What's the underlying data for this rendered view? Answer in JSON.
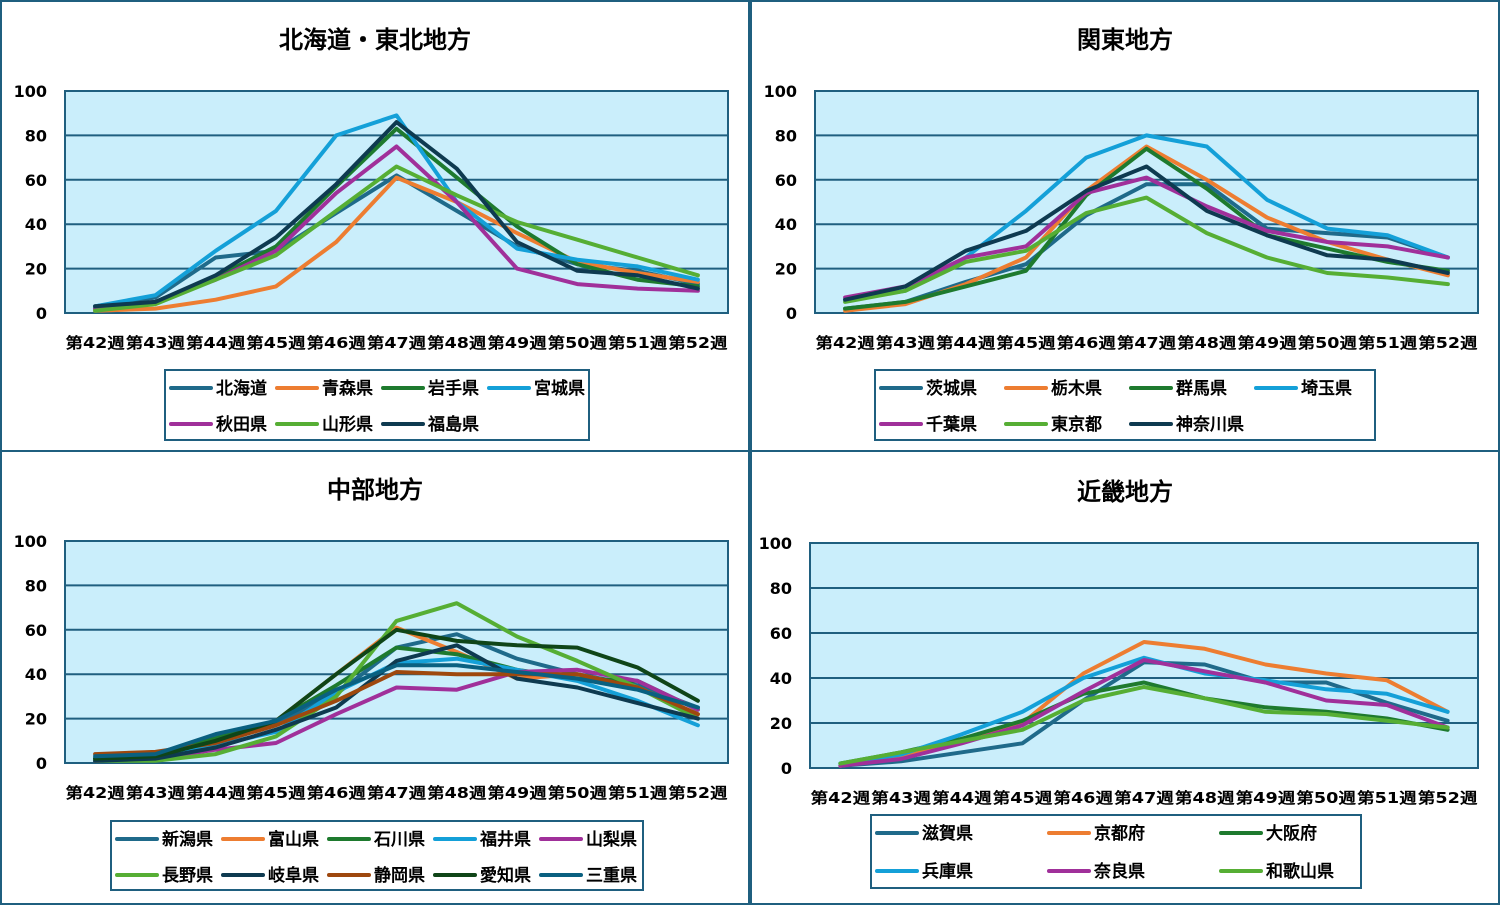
{
  "chart_data": [
    {
      "type": "line",
      "title": "北海道・東北地方",
      "categories": [
        "第42週",
        "第43週",
        "第44週",
        "第45週",
        "第46週",
        "第47週",
        "第48週",
        "第49週",
        "第50週",
        "第51週",
        "第52週"
      ],
      "ylim": [
        0,
        100
      ],
      "yticks": [
        0,
        20,
        40,
        60,
        80,
        100
      ],
      "grid": true,
      "legend": "bottom",
      "series": [
        {
          "name": "北海道",
          "color": "#1F6A8A",
          "values": [
            3,
            7,
            25,
            28,
            45,
            62,
            46,
            30,
            22,
            19,
            13
          ]
        },
        {
          "name": "青森県",
          "color": "#ED7D31",
          "values": [
            1,
            2,
            6,
            12,
            32,
            61,
            50,
            36,
            23,
            18,
            14
          ]
        },
        {
          "name": "岩手県",
          "color": "#1E7A2E",
          "values": [
            2,
            5,
            16,
            30,
            57,
            83,
            61,
            39,
            22,
            15,
            12
          ]
        },
        {
          "name": "宮城県",
          "color": "#14A0D8",
          "values": [
            3,
            8,
            28,
            46,
            80,
            89,
            50,
            29,
            24,
            21,
            15
          ]
        },
        {
          "name": "秋田県",
          "color": "#A0309A",
          "values": [
            2,
            5,
            15,
            28,
            54,
            75,
            50,
            20,
            13,
            11,
            10
          ]
        },
        {
          "name": "山形県",
          "color": "#56AE34",
          "values": [
            1,
            4,
            15,
            26,
            46,
            66,
            53,
            41,
            33,
            25,
            17
          ]
        },
        {
          "name": "福島県",
          "color": "#0E3A50",
          "values": [
            3,
            5,
            17,
            34,
            58,
            86,
            65,
            32,
            19,
            17,
            11
          ]
        }
      ]
    },
    {
      "type": "line",
      "title": "関東地方",
      "categories": [
        "第42週",
        "第43週",
        "第44週",
        "第45週",
        "第46週",
        "第47週",
        "第48週",
        "第49週",
        "第50週",
        "第51週",
        "第52週"
      ],
      "ylim": [
        0,
        100
      ],
      "yticks": [
        0,
        20,
        40,
        60,
        80,
        100
      ],
      "grid": true,
      "legend": "bottom",
      "series": [
        {
          "name": "茨城県",
          "color": "#1F6A8A",
          "values": [
            2,
            5,
            14,
            22,
            44,
            58,
            58,
            38,
            36,
            34,
            25
          ]
        },
        {
          "name": "栃木県",
          "color": "#ED7D31",
          "values": [
            1,
            4,
            13,
            25,
            55,
            75,
            60,
            43,
            32,
            24,
            17
          ]
        },
        {
          "name": "群馬県",
          "color": "#1E7A2E",
          "values": [
            2,
            5,
            12,
            19,
            53,
            74,
            56,
            35,
            29,
            23,
            19
          ]
        },
        {
          "name": "埼玉県",
          "color": "#14A0D8",
          "values": [
            6,
            10,
            25,
            46,
            70,
            80,
            75,
            51,
            38,
            35,
            25
          ]
        },
        {
          "name": "千葉県",
          "color": "#A0309A",
          "values": [
            7,
            12,
            25,
            30,
            54,
            61,
            48,
            37,
            32,
            30,
            25
          ]
        },
        {
          "name": "東京都",
          "color": "#56AE34",
          "values": [
            5,
            10,
            23,
            28,
            45,
            52,
            36,
            25,
            18,
            16,
            13
          ]
        },
        {
          "name": "神奈川県",
          "color": "#0E3A50",
          "values": [
            6,
            12,
            28,
            37,
            55,
            66,
            46,
            35,
            26,
            24,
            18
          ]
        }
      ]
    },
    {
      "type": "line",
      "title": "中部地方",
      "categories": [
        "第42週",
        "第43週",
        "第44週",
        "第45週",
        "第46週",
        "第47週",
        "第48週",
        "第49週",
        "第50週",
        "第51週",
        "第52週"
      ],
      "ylim": [
        0,
        100
      ],
      "yticks": [
        0,
        20,
        40,
        60,
        80,
        100
      ],
      "grid": true,
      "legend": "bottom",
      "series": [
        {
          "name": "新潟県",
          "color": "#1F6A8A",
          "values": [
            2,
            3,
            12,
            18,
            31,
            52,
            58,
            47,
            40,
            35,
            25
          ]
        },
        {
          "name": "富山県",
          "color": "#ED7D31",
          "values": [
            1,
            2,
            9,
            19,
            40,
            61,
            50,
            38,
            40,
            34,
            22
          ]
        },
        {
          "name": "石川県",
          "color": "#1E7A2E",
          "values": [
            2,
            4,
            11,
            19,
            35,
            52,
            49,
            42,
            38,
            37,
            24
          ]
        },
        {
          "name": "福井県",
          "color": "#14A0D8",
          "values": [
            1,
            3,
            8,
            14,
            32,
            45,
            47,
            42,
            37,
            28,
            17
          ]
        },
        {
          "name": "山梨県",
          "color": "#A0309A",
          "values": [
            1,
            2,
            6,
            9,
            22,
            34,
            33,
            41,
            42,
            37,
            24
          ]
        },
        {
          "name": "長野県",
          "color": "#56AE34",
          "values": [
            1,
            1,
            4,
            12,
            30,
            64,
            72,
            57,
            46,
            34,
            20
          ]
        },
        {
          "name": "岐阜県",
          "color": "#0E3A50",
          "values": [
            1,
            2,
            7,
            15,
            25,
            46,
            53,
            38,
            34,
            27,
            20
          ]
        },
        {
          "name": "静岡県",
          "color": "#9E480E",
          "values": [
            4,
            5,
            9,
            17,
            28,
            41,
            40,
            40,
            40,
            34,
            22
          ]
        },
        {
          "name": "愛知県",
          "color": "#0F4518",
          "values": [
            2,
            3,
            10,
            19,
            40,
            60,
            55,
            53,
            52,
            43,
            28
          ]
        },
        {
          "name": "三重県",
          "color": "#0A6080",
          "values": [
            3,
            4,
            13,
            19,
            33,
            44,
            44,
            41,
            38,
            33,
            25
          ]
        }
      ]
    },
    {
      "type": "line",
      "title": "近畿地方",
      "categories": [
        "第42週",
        "第43週",
        "第44週",
        "第45週",
        "第46週",
        "第47週",
        "第48週",
        "第49週",
        "第50週",
        "第51週",
        "第52週"
      ],
      "ylim": [
        0,
        100
      ],
      "yticks": [
        0,
        20,
        40,
        60,
        80,
        100
      ],
      "grid": true,
      "legend": "bottom",
      "series": [
        {
          "name": "滋賀県",
          "color": "#1F6A8A",
          "values": [
            1,
            3,
            7,
            11,
            30,
            47,
            46,
            38,
            38,
            29,
            21
          ]
        },
        {
          "name": "京都府",
          "color": "#ED7D31",
          "values": [
            1,
            5,
            12,
            20,
            42,
            56,
            53,
            46,
            42,
            39,
            25
          ]
        },
        {
          "name": "大阪府",
          "color": "#1E7A2E",
          "values": [
            2,
            7,
            13,
            21,
            33,
            38,
            31,
            27,
            25,
            22,
            17
          ]
        },
        {
          "name": "兵庫県",
          "color": "#14A0D8",
          "values": [
            2,
            6,
            15,
            25,
            40,
            49,
            42,
            39,
            35,
            33,
            25
          ]
        },
        {
          "name": "奈良県",
          "color": "#A0309A",
          "values": [
            1,
            4,
            11,
            19,
            34,
            48,
            43,
            38,
            30,
            28,
            18
          ]
        },
        {
          "name": "和歌山県",
          "color": "#56AE34",
          "values": [
            2,
            7,
            12,
            17,
            30,
            36,
            31,
            25,
            24,
            21,
            18
          ]
        }
      ]
    }
  ]
}
